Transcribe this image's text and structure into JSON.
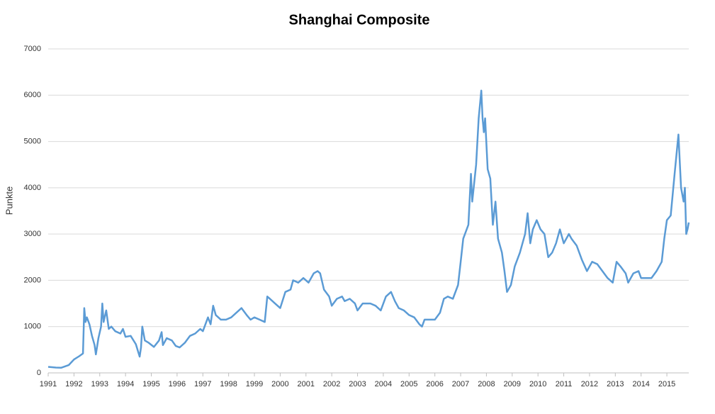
{
  "chart_data": {
    "type": "line",
    "title": "Shanghai Composite",
    "ylabel": "Punkte",
    "x": [
      1991.0,
      1991.3,
      1991.5,
      1991.8,
      1992.0,
      1992.2,
      1992.35,
      1992.4,
      1992.45,
      1992.5,
      1992.6,
      1992.7,
      1992.8,
      1992.85,
      1992.95,
      1993.05,
      1993.1,
      1993.15,
      1993.25,
      1993.35,
      1993.45,
      1993.6,
      1993.8,
      1993.9,
      1994.0,
      1994.2,
      1994.4,
      1994.55,
      1994.6,
      1994.65,
      1994.75,
      1994.9,
      1995.1,
      1995.3,
      1995.4,
      1995.45,
      1995.6,
      1995.8,
      1995.95,
      1996.1,
      1996.3,
      1996.5,
      1996.7,
      1996.9,
      1997.0,
      1997.2,
      1997.3,
      1997.4,
      1997.5,
      1997.7,
      1997.9,
      1998.1,
      1998.3,
      1998.5,
      1998.7,
      1998.85,
      1999.0,
      1999.2,
      1999.4,
      1999.5,
      1999.6,
      1999.8,
      2000.0,
      2000.2,
      2000.4,
      2000.5,
      2000.7,
      2000.9,
      2001.1,
      2001.3,
      2001.45,
      2001.55,
      2001.7,
      2001.9,
      2002.0,
      2002.2,
      2002.4,
      2002.5,
      2002.7,
      2002.9,
      2003.0,
      2003.2,
      2003.5,
      2003.7,
      2003.9,
      2004.1,
      2004.3,
      2004.45,
      2004.6,
      2004.8,
      2005.0,
      2005.2,
      2005.4,
      2005.5,
      2005.6,
      2005.8,
      2006.0,
      2006.2,
      2006.35,
      2006.5,
      2006.7,
      2006.9,
      2007.0,
      2007.1,
      2007.3,
      2007.4,
      2007.45,
      2007.6,
      2007.7,
      2007.8,
      2007.85,
      2007.9,
      2007.95,
      2008.05,
      2008.15,
      2008.25,
      2008.35,
      2008.45,
      2008.6,
      2008.7,
      2008.8,
      2008.95,
      2009.1,
      2009.3,
      2009.5,
      2009.6,
      2009.7,
      2009.8,
      2009.95,
      2010.1,
      2010.25,
      2010.4,
      2010.55,
      2010.7,
      2010.85,
      2011.0,
      2011.2,
      2011.3,
      2011.5,
      2011.7,
      2011.9,
      2012.1,
      2012.3,
      2012.5,
      2012.7,
      2012.9,
      2013.05,
      2013.2,
      2013.4,
      2013.5,
      2013.7,
      2013.9,
      2014.0,
      2014.2,
      2014.4,
      2014.6,
      2014.8,
      2014.9,
      2015.0,
      2015.15,
      2015.3,
      2015.45,
      2015.55,
      2015.65,
      2015.7,
      2015.75,
      2015.8,
      2015.85
    ],
    "series": [
      {
        "name": "Shanghai Composite",
        "color": "#5b9bd5",
        "values": [
          130,
          115,
          110,
          170,
          290,
          360,
          420,
          1400,
          1100,
          1200,
          1050,
          800,
          600,
          400,
          750,
          1000,
          1500,
          1100,
          1350,
          950,
          1000,
          900,
          850,
          950,
          780,
          800,
          620,
          350,
          550,
          1000,
          700,
          650,
          560,
          700,
          880,
          600,
          750,
          700,
          580,
          550,
          650,
          800,
          850,
          950,
          900,
          1200,
          1050,
          1450,
          1250,
          1150,
          1150,
          1200,
          1300,
          1400,
          1250,
          1150,
          1200,
          1150,
          1100,
          1650,
          1600,
          1500,
          1400,
          1750,
          1800,
          2000,
          1950,
          2050,
          1950,
          2150,
          2200,
          2150,
          1800,
          1650,
          1450,
          1600,
          1650,
          1550,
          1600,
          1500,
          1350,
          1500,
          1500,
          1450,
          1350,
          1650,
          1750,
          1550,
          1400,
          1350,
          1250,
          1200,
          1050,
          1000,
          1150,
          1150,
          1150,
          1300,
          1600,
          1650,
          1600,
          1900,
          2400,
          2900,
          3200,
          4300,
          3700,
          4500,
          5500,
          6100,
          5500,
          5200,
          5500,
          4400,
          4200,
          3200,
          3700,
          2900,
          2600,
          2200,
          1750,
          1900,
          2300,
          2600,
          3000,
          3450,
          2800,
          3100,
          3300,
          3100,
          3000,
          2500,
          2600,
          2800,
          3100,
          2800,
          3000,
          2900,
          2750,
          2450,
          2200,
          2400,
          2350,
          2200,
          2050,
          1950,
          2400,
          2300,
          2150,
          1950,
          2150,
          2200,
          2050,
          2050,
          2050,
          2200,
          2400,
          2900,
          3300,
          3400,
          4300,
          5150,
          4000,
          3700,
          4000,
          3000,
          3100,
          3250
        ]
      }
    ],
    "xlim": [
      1991,
      2015.85
    ],
    "xticks": [
      1991,
      1992,
      1993,
      1994,
      1995,
      1996,
      1997,
      1998,
      1999,
      2000,
      2001,
      2002,
      2003,
      2004,
      2005,
      2006,
      2007,
      2008,
      2009,
      2010,
      2011,
      2012,
      2013,
      2014,
      2015
    ],
    "ylim": [
      0,
      7000
    ],
    "yticks": [
      0,
      1000,
      2000,
      3000,
      4000,
      5000,
      6000,
      7000
    ],
    "grid": true
  }
}
